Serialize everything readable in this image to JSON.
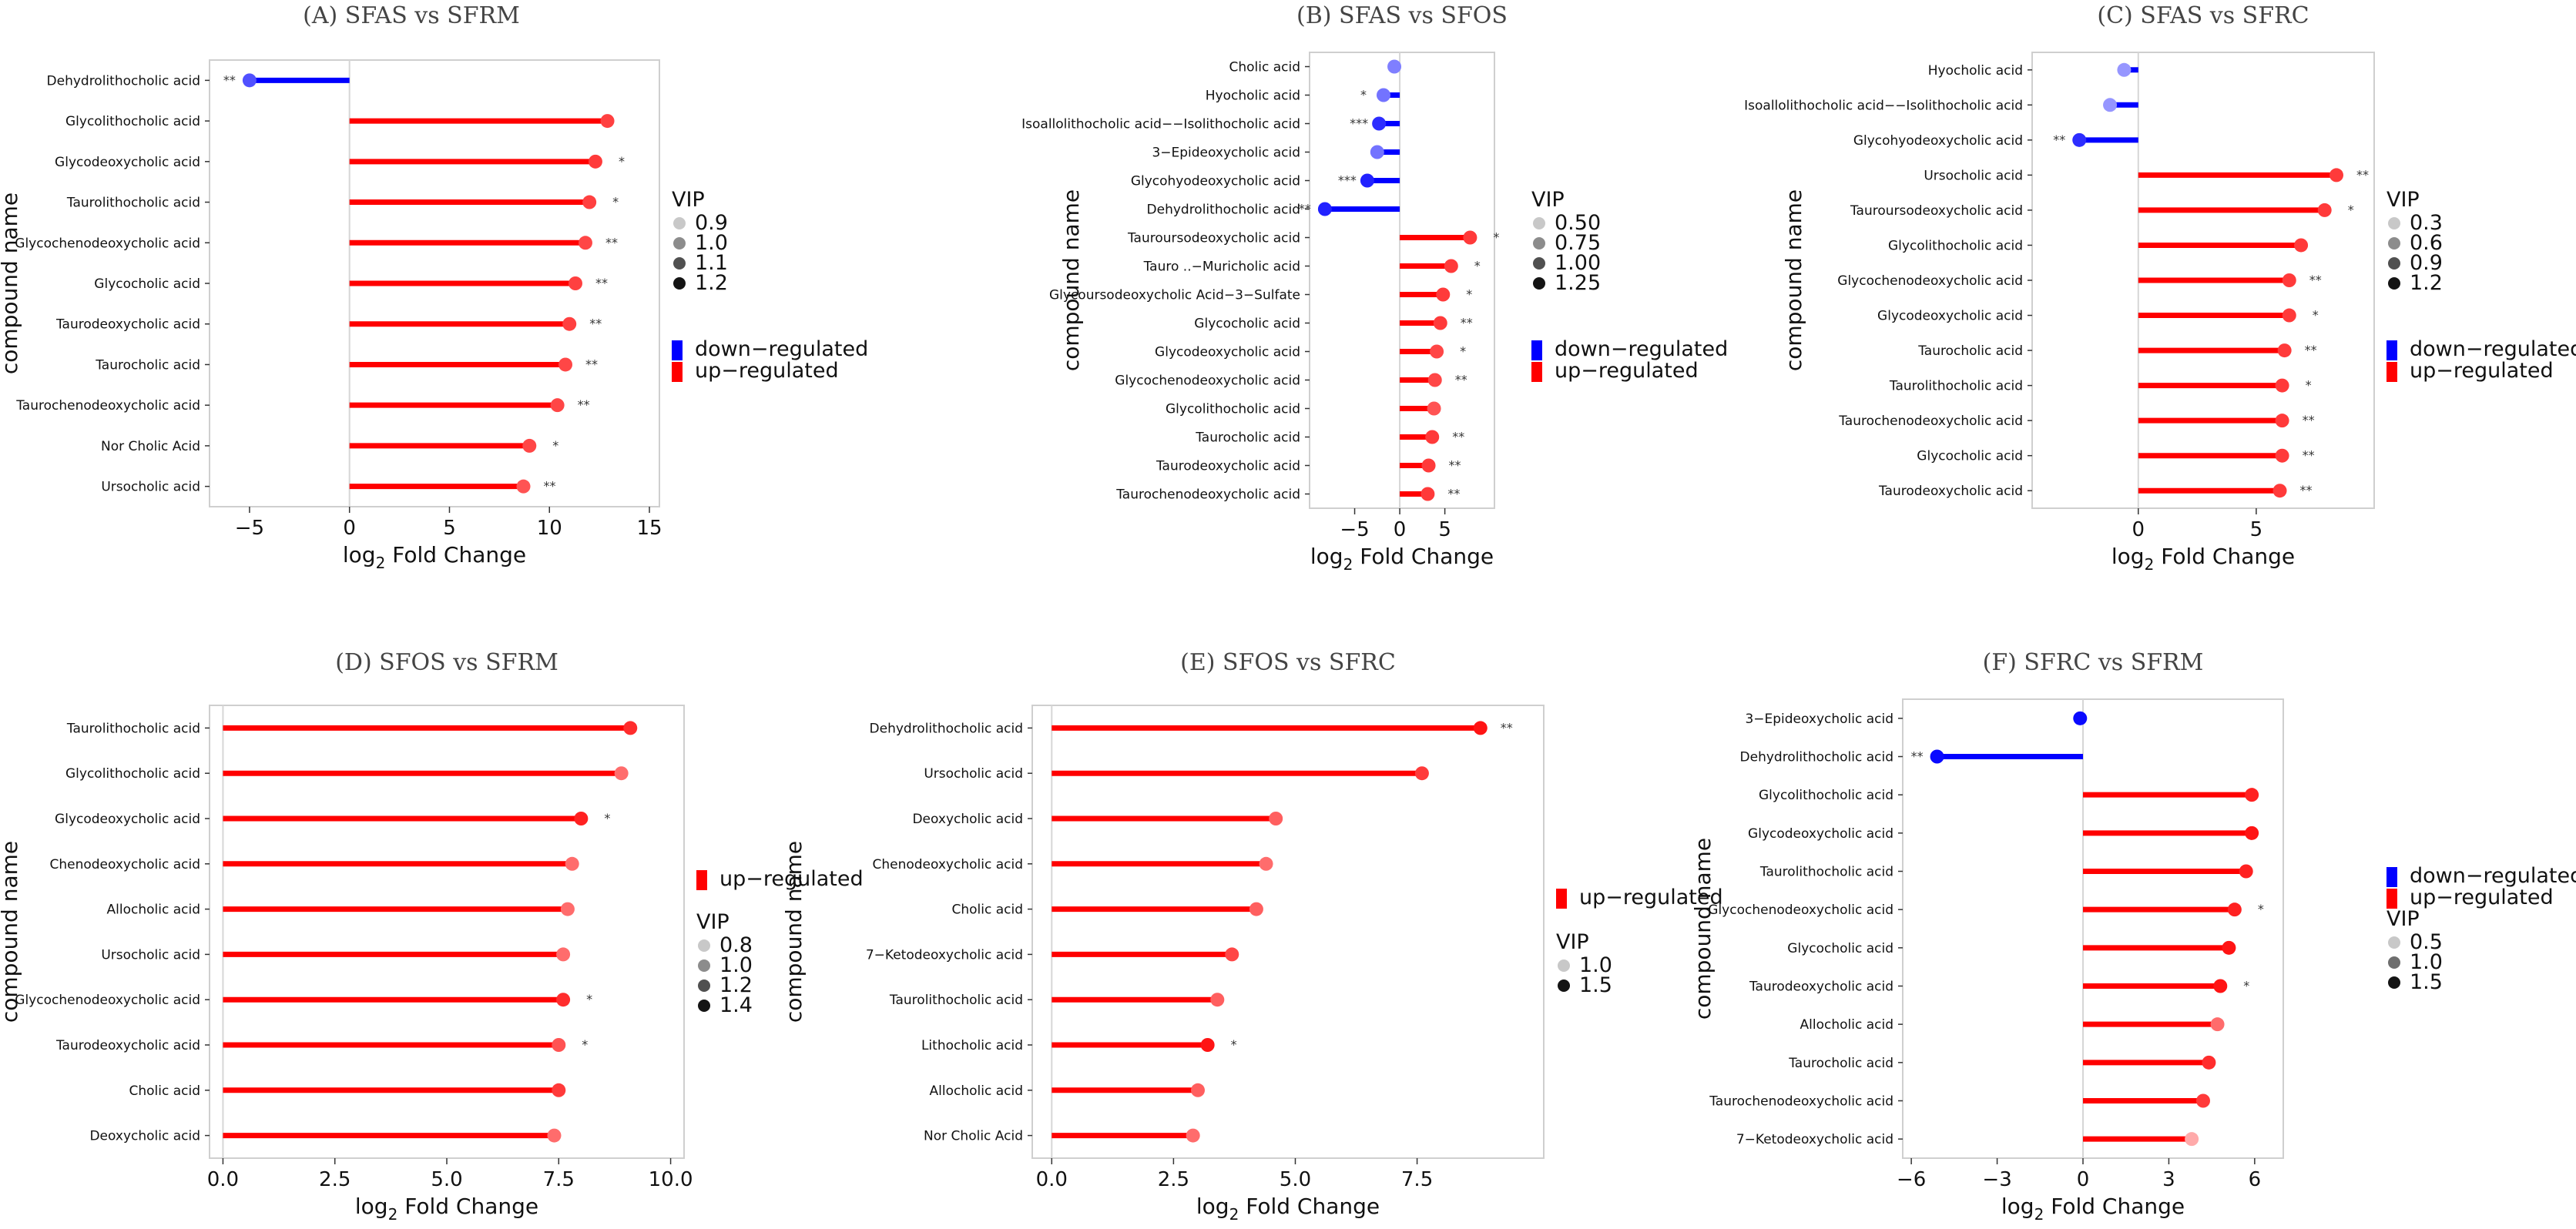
{
  "chart_data": [
    {
      "type": "lollipop",
      "title": "(A)  SFAS vs SFRM",
      "xlabel": "log2 Fold Change",
      "ylabel": "compound name",
      "xlim": [
        -7,
        15.5
      ],
      "xticks": [
        -5,
        0,
        5,
        10,
        15
      ],
      "xtick_labels": [
        "−5",
        "0",
        "5",
        "10",
        "15"
      ],
      "legend_labels": [
        "down−regulated",
        "up−regulated"
      ],
      "vip_title": "VIP",
      "vip_levels": [
        "0.9",
        "1.0",
        "1.1",
        "1.2"
      ],
      "colors": {
        "down": "#0000ff",
        "up": "#ff0000"
      },
      "compounds": [
        {
          "name": "Dehydrolithocholic acid",
          "value": -5.0,
          "vip": 0.9,
          "sig": "**"
        },
        {
          "name": "Glycolithocholic acid",
          "value": 12.9,
          "vip": 1.15,
          "sig": ""
        },
        {
          "name": "Glycodeoxycholic acid",
          "value": 12.3,
          "vip": 1.2,
          "sig": "*"
        },
        {
          "name": "Taurolithocholic acid",
          "value": 12.0,
          "vip": 1.15,
          "sig": "*"
        },
        {
          "name": "Glycochenodeoxycholic acid",
          "value": 11.8,
          "vip": 1.1,
          "sig": "**"
        },
        {
          "name": "Glycocholic acid",
          "value": 11.3,
          "vip": 1.15,
          "sig": "**"
        },
        {
          "name": "Taurodeoxycholic acid",
          "value": 11.0,
          "vip": 1.15,
          "sig": "**"
        },
        {
          "name": "Taurocholic acid",
          "value": 10.8,
          "vip": 1.1,
          "sig": "**"
        },
        {
          "name": "Taurochenodeoxycholic acid",
          "value": 10.4,
          "vip": 1.1,
          "sig": "**"
        },
        {
          "name": "Nor Cholic Acid",
          "value": 9.0,
          "vip": 1.1,
          "sig": "*"
        },
        {
          "name": "Ursocholic acid",
          "value": 8.7,
          "vip": 1.0,
          "sig": "**"
        }
      ]
    },
    {
      "type": "lollipop",
      "title": "(B)  SFAS vs SFOS",
      "xlabel": "log2 Fold Change",
      "ylabel": "compound name",
      "xlim": [
        -10,
        10.5
      ],
      "xticks": [
        -5,
        0,
        5
      ],
      "xtick_labels": [
        "−5",
        "0",
        "5"
      ],
      "legend_labels": [
        "down−regulated",
        "up−regulated"
      ],
      "vip_title": "VIP",
      "vip_levels": [
        "0.50",
        "0.75",
        "1.00",
        "1.25"
      ],
      "colors": {
        "down": "#0000ff",
        "up": "#ff0000"
      },
      "compounds": [
        {
          "name": "Cholic acid",
          "value": -0.6,
          "vip": 0.5,
          "sig": ""
        },
        {
          "name": "Hyocholic acid",
          "value": -1.8,
          "vip": 0.6,
          "sig": "*"
        },
        {
          "name": "Isoallolithocholic acid−−Isolithocholic acid",
          "value": -2.3,
          "vip": 1.2,
          "sig": "***"
        },
        {
          "name": "3−Epideoxycholic acid",
          "value": -2.5,
          "vip": 0.6,
          "sig": ""
        },
        {
          "name": "Glycohyodeoxycholic acid",
          "value": -3.6,
          "vip": 1.3,
          "sig": "***"
        },
        {
          "name": "Dehydrolithocholic acid",
          "value": -8.3,
          "vip": 1.3,
          "sig": "**"
        },
        {
          "name": "Tauroursodeoxycholic acid",
          "value": 7.8,
          "vip": 1.2,
          "sig": "*"
        },
        {
          "name": "Tauro ..−Muricholic acid",
          "value": 5.7,
          "vip": 1.2,
          "sig": "*"
        },
        {
          "name": "Glycoursodeoxycholic Acid−3−Sulfate",
          "value": 4.8,
          "vip": 1.2,
          "sig": "*"
        },
        {
          "name": "Glycocholic acid",
          "value": 4.5,
          "vip": 1.2,
          "sig": "**"
        },
        {
          "name": "Glycodeoxycholic acid",
          "value": 4.1,
          "vip": 1.1,
          "sig": "*"
        },
        {
          "name": "Glycochenodeoxycholic acid",
          "value": 3.9,
          "vip": 1.1,
          "sig": "**"
        },
        {
          "name": "Glycolithocholic acid",
          "value": 3.8,
          "vip": 1.0,
          "sig": ""
        },
        {
          "name": "Taurocholic acid",
          "value": 3.6,
          "vip": 1.2,
          "sig": "**"
        },
        {
          "name": "Taurodeoxycholic acid",
          "value": 3.2,
          "vip": 1.2,
          "sig": "**"
        },
        {
          "name": "Taurochenodeoxycholic acid",
          "value": 3.1,
          "vip": 1.2,
          "sig": "**"
        }
      ]
    },
    {
      "type": "lollipop",
      "title": "(C)  SFAS vs SFRC",
      "xlabel": "log2 Fold Change",
      "ylabel": "compound name",
      "xlim": [
        -4.5,
        10
      ],
      "xticks": [
        0,
        5
      ],
      "xtick_labels": [
        "0",
        "5"
      ],
      "legend_labels": [
        "down−regulated",
        "up−regulated"
      ],
      "vip_title": "VIP",
      "vip_levels": [
        "0.3",
        "0.6",
        "0.9",
        "1.2"
      ],
      "colors": {
        "down": "#0000ff",
        "up": "#ff0000"
      },
      "compounds": [
        {
          "name": "Hyocholic acid",
          "value": -0.6,
          "vip": 0.3,
          "sig": ""
        },
        {
          "name": "Isoallolithocholic acid−−Isolithocholic acid",
          "value": -1.2,
          "vip": 0.2,
          "sig": ""
        },
        {
          "name": "Glycohyodeoxycholic acid",
          "value": -2.5,
          "vip": 1.2,
          "sig": "**"
        },
        {
          "name": "Ursocholic acid",
          "value": 8.4,
          "vip": 1.2,
          "sig": "**"
        },
        {
          "name": "Tauroursodeoxycholic acid",
          "value": 7.9,
          "vip": 1.2,
          "sig": "*"
        },
        {
          "name": "Glycolithocholic acid",
          "value": 6.9,
          "vip": 1.2,
          "sig": ""
        },
        {
          "name": "Glycochenodeoxycholic acid",
          "value": 6.4,
          "vip": 1.2,
          "sig": "**"
        },
        {
          "name": "Glycodeoxycholic acid",
          "value": 6.4,
          "vip": 1.2,
          "sig": "*"
        },
        {
          "name": "Taurocholic acid",
          "value": 6.2,
          "vip": 1.2,
          "sig": "**"
        },
        {
          "name": "Taurolithocholic acid",
          "value": 6.1,
          "vip": 1.2,
          "sig": "*"
        },
        {
          "name": "Taurochenodeoxycholic acid",
          "value": 6.1,
          "vip": 1.2,
          "sig": "**"
        },
        {
          "name": "Glycocholic acid",
          "value": 6.1,
          "vip": 1.2,
          "sig": "**"
        },
        {
          "name": "Taurodeoxycholic acid",
          "value": 6.0,
          "vip": 1.2,
          "sig": "**"
        }
      ]
    },
    {
      "type": "lollipop",
      "title": "(D)  SFOS vs SFRM",
      "xlabel": "log2 Fold Change",
      "ylabel": "compound name",
      "xlim": [
        -0.3,
        10.3
      ],
      "xticks": [
        0,
        2.5,
        5,
        7.5,
        10
      ],
      "xtick_labels": [
        "0.0",
        "2.5",
        "5.0",
        "7.5",
        "10.0"
      ],
      "legend_labels": [
        "up−regulated"
      ],
      "vip_title": "VIP",
      "vip_levels": [
        "0.8",
        "1.0",
        "1.2",
        "1.4"
      ],
      "colors": {
        "down": "#0000ff",
        "up": "#ff0000"
      },
      "compounds": [
        {
          "name": "Taurolithocholic acid",
          "value": 9.1,
          "vip": 1.3,
          "sig": ""
        },
        {
          "name": "Glycolithocholic acid",
          "value": 8.9,
          "vip": 0.8,
          "sig": ""
        },
        {
          "name": "Glycodeoxycholic acid",
          "value": 8.0,
          "vip": 1.4,
          "sig": "*"
        },
        {
          "name": "Chenodeoxycholic acid",
          "value": 7.8,
          "vip": 0.8,
          "sig": ""
        },
        {
          "name": "Allocholic acid",
          "value": 7.7,
          "vip": 0.8,
          "sig": ""
        },
        {
          "name": "Ursocholic acid",
          "value": 7.6,
          "vip": 0.8,
          "sig": ""
        },
        {
          "name": "Glycochenodeoxycholic acid",
          "value": 7.6,
          "vip": 1.3,
          "sig": "*"
        },
        {
          "name": "Taurodeoxycholic acid",
          "value": 7.5,
          "vip": 1.0,
          "sig": "*"
        },
        {
          "name": "Cholic acid",
          "value": 7.5,
          "vip": 1.2,
          "sig": ""
        },
        {
          "name": "Deoxycholic acid",
          "value": 7.4,
          "vip": 0.8,
          "sig": ""
        }
      ]
    },
    {
      "type": "lollipop",
      "title": "(E)  SFOS vs SFRC",
      "xlabel": "log2 Fold Change",
      "ylabel": "compound name",
      "xlim": [
        -0.4,
        10.1
      ],
      "xticks": [
        0,
        2.5,
        5,
        7.5
      ],
      "xtick_labels": [
        "0.0",
        "2.5",
        "5.0",
        "7.5"
      ],
      "legend_labels": [
        "up−regulated"
      ],
      "vip_title": "VIP",
      "vip_levels": [
        "1.0",
        "1.5"
      ],
      "colors": {
        "down": "#0000ff",
        "up": "#ff0000"
      },
      "compounds": [
        {
          "name": "Dehydrolithocholic acid",
          "value": 8.8,
          "vip": 1.7,
          "sig": "**"
        },
        {
          "name": "Ursocholic acid",
          "value": 7.6,
          "vip": 1.2,
          "sig": ""
        },
        {
          "name": "Deoxycholic acid",
          "value": 4.6,
          "vip": 0.9,
          "sig": ""
        },
        {
          "name": "Chenodeoxycholic acid",
          "value": 4.4,
          "vip": 0.8,
          "sig": ""
        },
        {
          "name": "Cholic acid",
          "value": 4.2,
          "vip": 0.9,
          "sig": ""
        },
        {
          "name": "7−Ketodeoxycholic acid",
          "value": 3.7,
          "vip": 1.1,
          "sig": ""
        },
        {
          "name": "Taurolithocholic acid",
          "value": 3.4,
          "vip": 0.9,
          "sig": ""
        },
        {
          "name": "Lithocholic acid",
          "value": 3.2,
          "vip": 1.6,
          "sig": "*"
        },
        {
          "name": "Allocholic acid",
          "value": 3.0,
          "vip": 0.9,
          "sig": ""
        },
        {
          "name": "Nor Cholic Acid",
          "value": 2.9,
          "vip": 0.8,
          "sig": ""
        }
      ]
    },
    {
      "type": "lollipop",
      "title": "(F)  SFRC vs SFRM",
      "xlabel": "log2 Fold Change",
      "ylabel": "compound name",
      "xlim": [
        -6.3,
        7
      ],
      "xticks": [
        -6,
        -3,
        0,
        3,
        6
      ],
      "xtick_labels": [
        "−6",
        "−3",
        "0",
        "3",
        "6"
      ],
      "legend_labels": [
        "down−regulated",
        "up−regulated"
      ],
      "vip_title": "VIP",
      "vip_levels": [
        "0.5",
        "1.0",
        "1.5"
      ],
      "colors": {
        "down": "#0000ff",
        "up": "#ff0000"
      },
      "compounds": [
        {
          "name": "3−Epideoxycholic acid",
          "value": -0.1,
          "vip": 1.5,
          "sig": ""
        },
        {
          "name": "Dehydrolithocholic acid",
          "value": -5.1,
          "vip": 1.6,
          "sig": "**"
        },
        {
          "name": "Glycolithocholic acid",
          "value": 5.9,
          "vip": 1.4,
          "sig": ""
        },
        {
          "name": "Glycodeoxycholic acid",
          "value": 5.9,
          "vip": 1.6,
          "sig": ""
        },
        {
          "name": "Taurolithocholic acid",
          "value": 5.7,
          "vip": 1.4,
          "sig": ""
        },
        {
          "name": "Glycochenodeoxycholic acid",
          "value": 5.3,
          "vip": 1.4,
          "sig": "*"
        },
        {
          "name": "Glycocholic acid",
          "value": 5.1,
          "vip": 1.6,
          "sig": ""
        },
        {
          "name": "Taurodeoxycholic acid",
          "value": 4.8,
          "vip": 1.5,
          "sig": "*"
        },
        {
          "name": "Allocholic acid",
          "value": 4.7,
          "vip": 0.8,
          "sig": ""
        },
        {
          "name": "Taurocholic acid",
          "value": 4.4,
          "vip": 1.3,
          "sig": ""
        },
        {
          "name": "Taurochenodeoxycholic acid",
          "value": 4.2,
          "vip": 1.2,
          "sig": ""
        },
        {
          "name": "7−Ketodeoxycholic acid",
          "value": 3.8,
          "vip": 0.3,
          "sig": ""
        }
      ]
    }
  ]
}
